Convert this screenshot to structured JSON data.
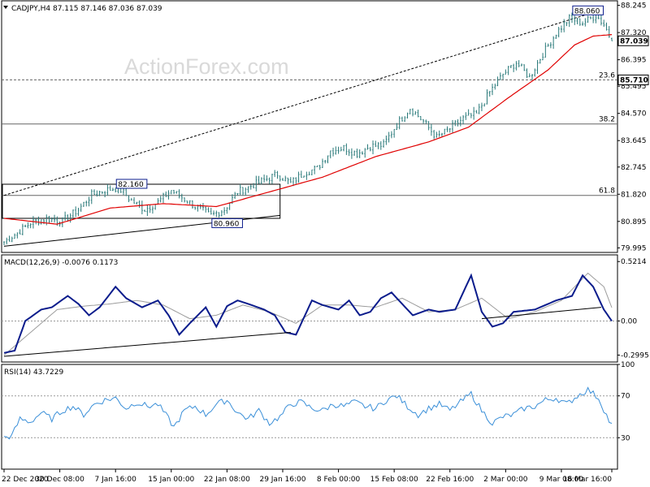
{
  "watermark": "ActionForex.com",
  "colors": {
    "frame": "#000000",
    "candles": "#2a7a7a",
    "ma": "#e00000",
    "macd": "#0b1c8c",
    "signal": "#9c9c9c",
    "rsi": "#3a8fd8",
    "level_line": "#666666",
    "price_box_bg": "#ffffff"
  },
  "chart_data": [
    {
      "type": "candlestick",
      "panel": "price",
      "title": "CADJPY,H4  87.115 87.146 87.036 87.039",
      "ohlc_last": {
        "open": 87.115,
        "high": 87.146,
        "low": 87.036,
        "close": 87.039
      },
      "y_ticks": [
        "88.245",
        "87.320",
        "86.395",
        "85.495",
        "84.570",
        "83.645",
        "82.745",
        "81.820",
        "80.895",
        "79.995"
      ],
      "ylim": [
        79.84,
        88.4
      ],
      "x_ticks": [
        "22 Dec 2020",
        "30 Dec 08:00",
        "7 Jan 16:00",
        "15 Jan 00:00",
        "22 Jan 08:00",
        "29 Jan 16:00",
        "8 Feb 00:00",
        "15 Feb 08:00",
        "22 Feb 16:00",
        "2 Mar 00:00",
        "9 Mar 08:00",
        "16 Mar 16:00"
      ],
      "close_anchors": [
        [
          0,
          80.2
        ],
        [
          5,
          80.5
        ],
        [
          10,
          80.85
        ],
        [
          16,
          81.0
        ],
        [
          22,
          80.9
        ],
        [
          28,
          81.3
        ],
        [
          33,
          81.8
        ],
        [
          38,
          81.95
        ],
        [
          43,
          82.05
        ],
        [
          48,
          81.6
        ],
        [
          53,
          81.3
        ],
        [
          58,
          81.55
        ],
        [
          63,
          81.95
        ],
        [
          68,
          81.65
        ],
        [
          73,
          81.35
        ],
        [
          78,
          81.1
        ],
        [
          83,
          81.3
        ],
        [
          88,
          81.9
        ],
        [
          93,
          82.1
        ],
        [
          98,
          82.3
        ],
        [
          103,
          82.5
        ],
        [
          108,
          82.2
        ],
        [
          113,
          82.55
        ],
        [
          118,
          82.7
        ],
        [
          123,
          83.3
        ],
        [
          128,
          83.4
        ],
        [
          133,
          83.2
        ],
        [
          138,
          83.45
        ],
        [
          143,
          83.5
        ],
        [
          148,
          84.2
        ],
        [
          153,
          84.75
        ],
        [
          158,
          84.3
        ],
        [
          163,
          83.75
        ],
        [
          168,
          84.05
        ],
        [
          173,
          84.4
        ],
        [
          178,
          84.55
        ],
        [
          183,
          85.3
        ],
        [
          188,
          85.9
        ],
        [
          193,
          86.3
        ],
        [
          198,
          85.8
        ],
        [
          203,
          86.6
        ],
        [
          208,
          87.3
        ],
        [
          213,
          87.8
        ],
        [
          218,
          87.65
        ],
        [
          223,
          87.9
        ],
        [
          226,
          87.6
        ],
        [
          229,
          87.039
        ]
      ],
      "ma_anchors": [
        [
          0,
          81.0
        ],
        [
          20,
          80.8
        ],
        [
          40,
          81.35
        ],
        [
          60,
          81.5
        ],
        [
          80,
          81.4
        ],
        [
          100,
          81.9
        ],
        [
          120,
          82.4
        ],
        [
          140,
          83.1
        ],
        [
          160,
          83.6
        ],
        [
          175,
          84.1
        ],
        [
          190,
          85.1
        ],
        [
          205,
          86.05
        ],
        [
          215,
          86.9
        ],
        [
          222,
          87.2
        ],
        [
          229,
          87.25
        ]
      ],
      "price_tags": [
        "87.039",
        "85.710"
      ],
      "labels": [
        "88.060",
        "82.160",
        "80.960"
      ],
      "horizontal_levels": [
        {
          "label": "23.6",
          "value": 85.71
        },
        {
          "label": "38.2",
          "value": 84.21
        },
        {
          "label": "61.8",
          "value": 81.78
        }
      ],
      "box": {
        "top": 82.16,
        "bottom": 81.0
      },
      "trendlines": [
        {
          "style": "dotted",
          "from": [
            0,
            81.78
          ],
          "to": [
            224,
            88.06
          ]
        },
        {
          "style": "solid",
          "from": [
            0,
            80.05
          ],
          "to": [
            104,
            81.1
          ]
        }
      ]
    },
    {
      "type": "line",
      "panel": "macd",
      "title": "MACD(12,26,9) -0.0076 0.1173",
      "y_ticks": [
        "0.5214",
        "0.00",
        "-0.2995"
      ],
      "ylim": [
        -0.36,
        0.58
      ],
      "series": [
        {
          "values_anchor": [
            [
              0,
              -0.28
            ],
            [
              4,
              -0.26
            ],
            [
              8,
              0.0
            ],
            [
              14,
              0.1
            ],
            [
              18,
              0.12
            ],
            [
              24,
              0.22
            ],
            [
              28,
              0.15
            ],
            [
              32,
              0.05
            ],
            [
              36,
              0.12
            ],
            [
              42,
              0.3
            ],
            [
              46,
              0.2
            ],
            [
              52,
              0.12
            ],
            [
              58,
              0.18
            ],
            [
              62,
              0.05
            ],
            [
              66,
              -0.12
            ],
            [
              70,
              -0.02
            ],
            [
              76,
              0.12
            ],
            [
              80,
              -0.05
            ],
            [
              84,
              0.13
            ],
            [
              88,
              0.18
            ],
            [
              92,
              0.15
            ],
            [
              98,
              0.1
            ],
            [
              102,
              0.05
            ],
            [
              106,
              -0.1
            ],
            [
              110,
              -0.12
            ],
            [
              116,
              0.18
            ],
            [
              120,
              0.14
            ],
            [
              126,
              0.1
            ],
            [
              130,
              0.18
            ],
            [
              134,
              0.05
            ],
            [
              138,
              0.08
            ],
            [
              142,
              0.2
            ],
            [
              146,
              0.25
            ],
            [
              150,
              0.15
            ],
            [
              154,
              0.05
            ],
            [
              160,
              0.1
            ],
            [
              164,
              0.08
            ],
            [
              170,
              0.1
            ],
            [
              176,
              0.4
            ],
            [
              180,
              0.08
            ],
            [
              184,
              -0.05
            ],
            [
              188,
              -0.02
            ],
            [
              192,
              0.08
            ],
            [
              200,
              0.1
            ],
            [
              208,
              0.18
            ],
            [
              214,
              0.22
            ],
            [
              218,
              0.4
            ],
            [
              222,
              0.3
            ],
            [
              226,
              0.1
            ],
            [
              229,
              0.0
            ]
          ]
        },
        {
          "values_anchor": [
            [
              0,
              -0.3
            ],
            [
              10,
              -0.1
            ],
            [
              20,
              0.1
            ],
            [
              30,
              0.13
            ],
            [
              40,
              0.15
            ],
            [
              50,
              0.18
            ],
            [
              60,
              0.14
            ],
            [
              70,
              0.02
            ],
            [
              80,
              0.05
            ],
            [
              90,
              0.14
            ],
            [
              100,
              0.08
            ],
            [
              110,
              -0.02
            ],
            [
              120,
              0.14
            ],
            [
              130,
              0.14
            ],
            [
              140,
              0.12
            ],
            [
              150,
              0.2
            ],
            [
              160,
              0.08
            ],
            [
              170,
              0.1
            ],
            [
              180,
              0.2
            ],
            [
              190,
              0.02
            ],
            [
              200,
              0.08
            ],
            [
              210,
              0.18
            ],
            [
              220,
              0.42
            ],
            [
              226,
              0.3
            ],
            [
              229,
              0.1173
            ]
          ]
        }
      ],
      "trendlines": [
        {
          "from": [
            0,
            -0.31
          ],
          "to": [
            108,
            -0.1
          ]
        },
        {
          "from": [
            180,
            0.02
          ],
          "to": [
            225,
            0.12
          ]
        }
      ]
    },
    {
      "type": "line",
      "panel": "rsi",
      "title": "RSI(14) 43.7229",
      "y_ticks": [
        "100",
        "70",
        "30"
      ],
      "ylim": [
        0,
        100
      ],
      "series": [
        {
          "values_anchor": [
            [
              0,
              30
            ],
            [
              3,
              32
            ],
            [
              6,
              48
            ],
            [
              10,
              45
            ],
            [
              14,
              54
            ],
            [
              18,
              48
            ],
            [
              22,
              56
            ],
            [
              26,
              60
            ],
            [
              30,
              52
            ],
            [
              34,
              62
            ],
            [
              38,
              66
            ],
            [
              42,
              68
            ],
            [
              46,
              58
            ],
            [
              50,
              64
            ],
            [
              54,
              60
            ],
            [
              58,
              62
            ],
            [
              62,
              48
            ],
            [
              64,
              40
            ],
            [
              68,
              56
            ],
            [
              72,
              60
            ],
            [
              76,
              52
            ],
            [
              80,
              62
            ],
            [
              84,
              66
            ],
            [
              88,
              54
            ],
            [
              92,
              48
            ],
            [
              96,
              56
            ],
            [
              100,
              44
            ],
            [
              104,
              50
            ],
            [
              108,
              62
            ],
            [
              112,
              64
            ],
            [
              116,
              58
            ],
            [
              120,
              56
            ],
            [
              124,
              62
            ],
            [
              128,
              60
            ],
            [
              132,
              64
            ],
            [
              136,
              60
            ],
            [
              140,
              58
            ],
            [
              144,
              66
            ],
            [
              148,
              70
            ],
            [
              152,
              60
            ],
            [
              156,
              52
            ],
            [
              160,
              58
            ],
            [
              164,
              62
            ],
            [
              168,
              56
            ],
            [
              172,
              64
            ],
            [
              176,
              72
            ],
            [
              180,
              56
            ],
            [
              184,
              44
            ],
            [
              188,
              50
            ],
            [
              192,
              52
            ],
            [
              196,
              58
            ],
            [
              200,
              60
            ],
            [
              204,
              66
            ],
            [
              208,
              68
            ],
            [
              212,
              62
            ],
            [
              216,
              70
            ],
            [
              220,
              76
            ],
            [
              224,
              68
            ],
            [
              228,
              46
            ],
            [
              229,
              43.7229
            ]
          ]
        }
      ],
      "levels": [
        70,
        30
      ]
    }
  ]
}
